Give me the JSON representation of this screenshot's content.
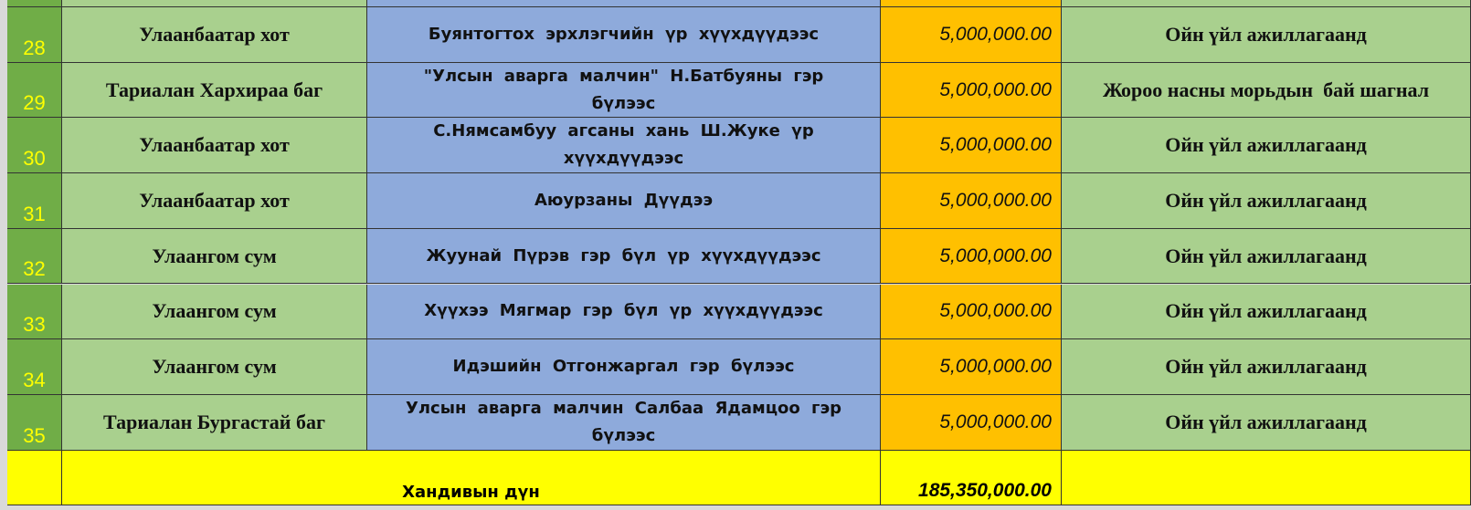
{
  "table": {
    "rows": [
      [
        "28",
        "Улаанбаатар хот",
        "Буянтогтох эрхлэгчийн үр хүүхдүүдээс",
        "5,000,000.00",
        "Ойн үйл ажиллагаанд"
      ],
      [
        "29",
        "Тариалан Хархираа баг",
        "\"Улсын аварга малчин\" Н.Батбуяны гэр бүлээс",
        "5,000,000.00",
        "Жороо насны морьдын  бай шагнал"
      ],
      [
        "30",
        "Улаанбаатар хот",
        "С.Нямсамбуу агсаны хань Ш.Жуке үр хүүхдүүдээс",
        "5,000,000.00",
        "Ойн үйл ажиллагаанд"
      ],
      [
        "31",
        "Улаанбаатар хот",
        "Аюурзаны Дүүдээ",
        "5,000,000.00",
        "Ойн үйл ажиллагаанд"
      ],
      [
        "32",
        "Улаангом сум",
        "Жуунай Пүрэв гэр бүл үр хүүхдүүдээс",
        "5,000,000.00",
        "Ойн үйл ажиллагаанд"
      ],
      [
        "33",
        "Улаангом сум",
        "Хүүхээ Мягмар гэр бүл үр хүүхдүүдээс",
        "5,000,000.00",
        "Ойн үйл ажиллагаанд"
      ],
      [
        "34",
        "Улаангом сум",
        "Идэшийн Отгонжаргал гэр бүлээс",
        "5,000,000.00",
        "Ойн үйл ажиллагаанд"
      ],
      [
        "35",
        "Тариалан Бургастай баг",
        "Улсын аварга малчин Салбаа Ядамцоо гэр бүлээс",
        "5,000,000.00",
        "Ойн үйл ажиллагаанд"
      ]
    ],
    "total": {
      "label": "Хандивын дүн",
      "amount": "185,350,000.00"
    }
  }
}
